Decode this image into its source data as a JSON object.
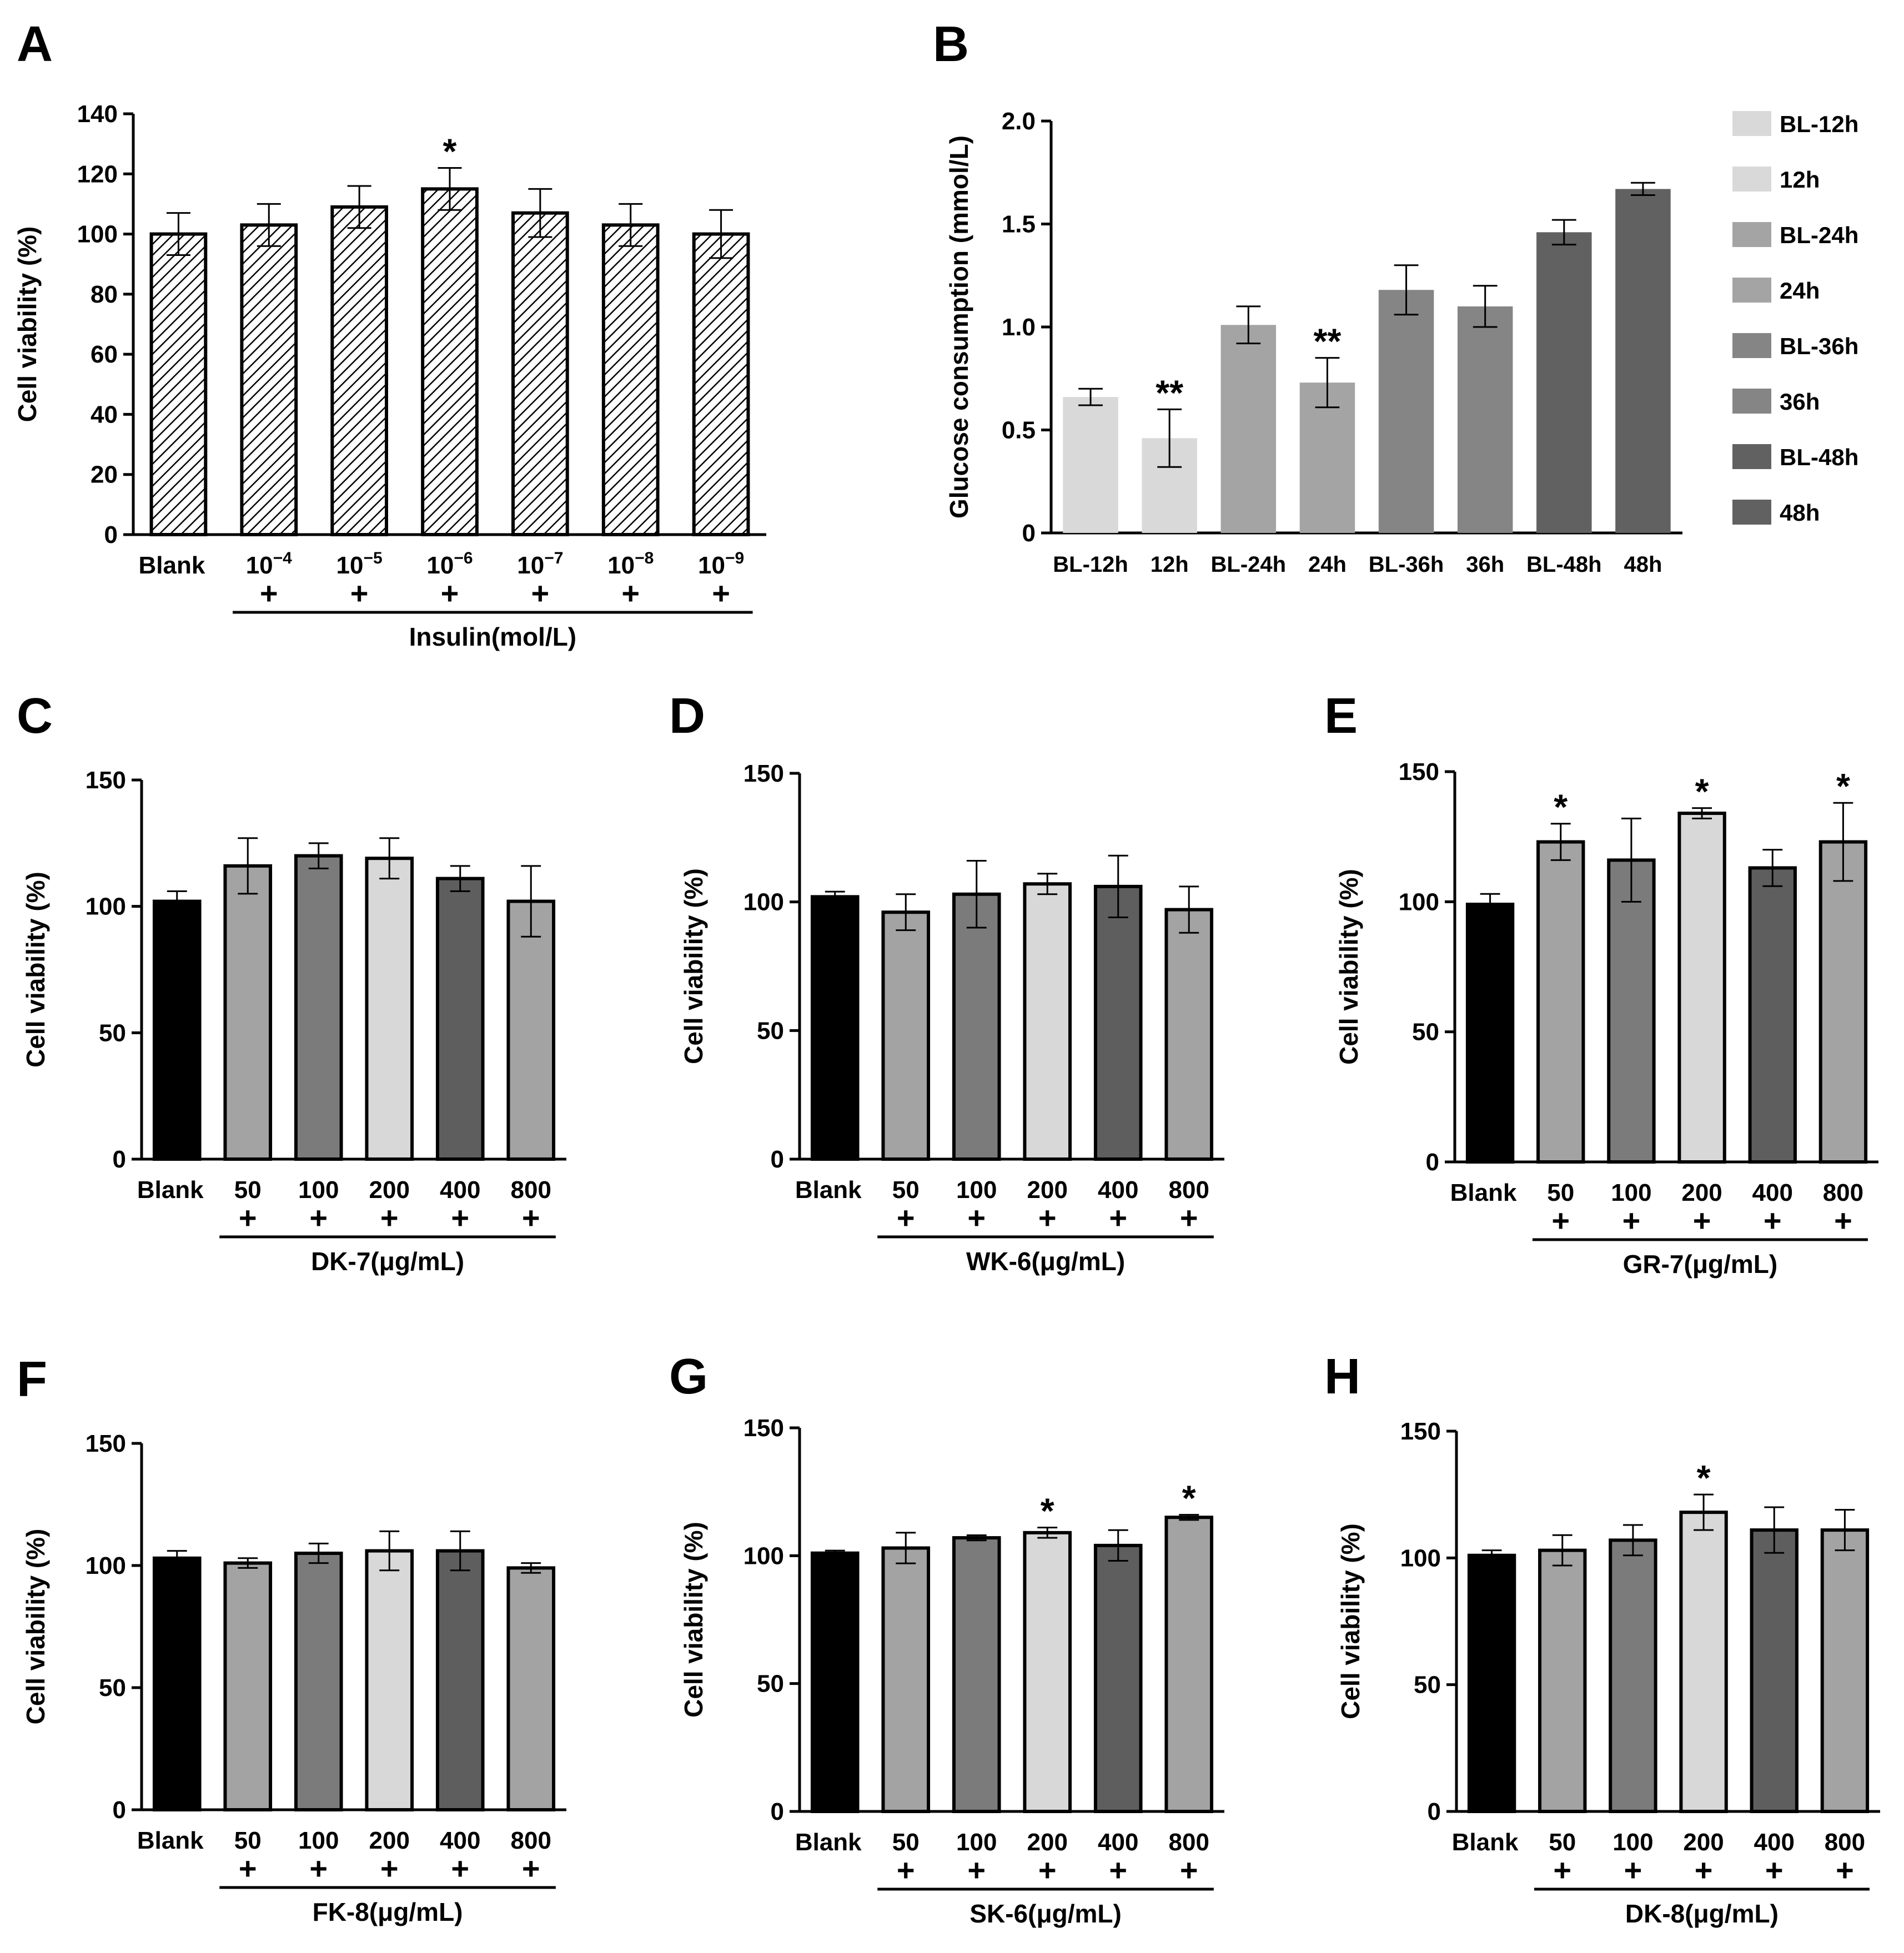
{
  "figure": {
    "colors": {
      "black": "#000000",
      "light": "#d8d8d8",
      "mid": "#a3a3a3",
      "dark": "#7b7b7b",
      "darker": "#5e5e5e"
    }
  },
  "chart_data": [
    {
      "panel": "A",
      "type": "bar",
      "hatched": true,
      "ylabel": "Cell viability (%)",
      "ylim": [
        0,
        140
      ],
      "yticks": [
        0,
        20,
        40,
        60,
        80,
        100,
        120,
        140
      ],
      "categories": [
        "Blank",
        "10",
        "10",
        "10",
        "10",
        "10",
        "10"
      ],
      "exponents": [
        "",
        "−4",
        "−5",
        "−6",
        "−7",
        "−8",
        "−9"
      ],
      "values": [
        100,
        103,
        109,
        115,
        107,
        103,
        100
      ],
      "errors": [
        7,
        7,
        7,
        7,
        8,
        7,
        8
      ],
      "signif": [
        "",
        "",
        "",
        "*",
        "",
        "",
        ""
      ],
      "plus": [
        false,
        true,
        true,
        true,
        true,
        true,
        true
      ],
      "treatment": "Insulin(mol/L)"
    },
    {
      "panel": "B",
      "type": "bar",
      "ylabel": "Glucose consumption (mmol/L)",
      "ylim": [
        0,
        2.0
      ],
      "yticks": [
        0,
        0.5,
        1.0,
        1.5,
        2.0
      ],
      "ytick_labels": [
        "0",
        "0.5",
        "1.0",
        "1.5",
        "2.0"
      ],
      "categories": [
        "BL-12h",
        "12h",
        "BL-24h",
        "24h",
        "BL-36h",
        "36h",
        "BL-48h",
        "48h"
      ],
      "values": [
        0.66,
        0.46,
        1.01,
        0.73,
        1.18,
        1.1,
        1.46,
        1.67
      ],
      "errors": [
        0.04,
        0.14,
        0.09,
        0.12,
        0.12,
        0.1,
        0.06,
        0.03
      ],
      "signif": [
        "",
        "**",
        "",
        "**",
        "",
        "",
        "",
        ""
      ],
      "colors": [
        "#d9d9d9",
        "#d9d9d9",
        "#a4a4a4",
        "#a4a4a4",
        "#858585",
        "#858585",
        "#616161",
        "#616161"
      ],
      "legend": [
        "BL-12h",
        "12h",
        "BL-24h",
        "24h",
        "BL-36h",
        "36h",
        "BL-48h",
        "48h"
      ]
    },
    {
      "panel": "C",
      "type": "bar",
      "ylabel": "Cell viability (%)",
      "ylim": [
        0,
        150
      ],
      "yticks": [
        0,
        50,
        100,
        150
      ],
      "categories": [
        "Blank",
        "50",
        "100",
        "200",
        "400",
        "800"
      ],
      "values": [
        102,
        116,
        120,
        119,
        111,
        102
      ],
      "errors": [
        4,
        11,
        5,
        8,
        5,
        14
      ],
      "signif": [
        "",
        "",
        "",
        "",
        "",
        ""
      ],
      "plus": [
        false,
        true,
        true,
        true,
        true,
        true
      ],
      "treatment": "DK-7(μg/mL)"
    },
    {
      "panel": "D",
      "type": "bar",
      "ylabel": "Cell viability (%)",
      "ylim": [
        0,
        150
      ],
      "yticks": [
        0,
        50,
        100,
        150
      ],
      "categories": [
        "Blank",
        "50",
        "100",
        "200",
        "400",
        "800"
      ],
      "values": [
        102,
        96,
        103,
        107,
        106,
        97
      ],
      "errors": [
        2,
        7,
        13,
        4,
        12,
        9
      ],
      "signif": [
        "",
        "",
        "",
        "",
        "",
        ""
      ],
      "plus": [
        false,
        true,
        true,
        true,
        true,
        true
      ],
      "treatment": "WK-6(μg/mL)"
    },
    {
      "panel": "E",
      "type": "bar",
      "ylabel": "Cell viability (%)",
      "ylim": [
        0,
        150
      ],
      "yticks": [
        0,
        50,
        100,
        150
      ],
      "categories": [
        "Blank",
        "50",
        "100",
        "200",
        "400",
        "800"
      ],
      "values": [
        99,
        123,
        116,
        134,
        113,
        123
      ],
      "errors": [
        4,
        7,
        16,
        2,
        7,
        15
      ],
      "signif": [
        "",
        "*",
        "",
        "*",
        "",
        "*"
      ],
      "plus": [
        false,
        true,
        true,
        true,
        true,
        true
      ],
      "treatment": "GR-7(μg/mL)"
    },
    {
      "panel": "F",
      "type": "bar",
      "ylabel": "Cell viability (%)",
      "ylim": [
        0,
        150
      ],
      "yticks": [
        0,
        50,
        100,
        150
      ],
      "categories": [
        "Blank",
        "50",
        "100",
        "200",
        "400",
        "800"
      ],
      "values": [
        103,
        101,
        105,
        106,
        106,
        99
      ],
      "errors": [
        3,
        2,
        4,
        8,
        8,
        2
      ],
      "signif": [
        "",
        "",
        "",
        "",
        "",
        ""
      ],
      "plus": [
        false,
        true,
        true,
        true,
        true,
        true
      ],
      "treatment": "FK-8(μg/mL)"
    },
    {
      "panel": "G",
      "type": "bar",
      "ylabel": "Cell viability (%)",
      "ylim": [
        0,
        150
      ],
      "yticks": [
        0,
        50,
        100,
        150
      ],
      "categories": [
        "Blank",
        "50",
        "100",
        "200",
        "400",
        "800"
      ],
      "values": [
        101,
        103,
        107,
        109,
        104,
        115
      ],
      "errors": [
        1,
        6,
        1,
        2,
        6,
        1
      ],
      "signif": [
        "",
        "",
        "",
        "*",
        "",
        "*"
      ],
      "plus": [
        false,
        true,
        true,
        true,
        true,
        true
      ],
      "treatment": "SK-6(μg/mL)"
    },
    {
      "panel": "H",
      "type": "bar",
      "ylabel": "Cell viability (%)",
      "ylim": [
        0,
        150
      ],
      "yticks": [
        0,
        50,
        100,
        150
      ],
      "categories": [
        "Blank",
        "50",
        "100",
        "200",
        "400",
        "800"
      ],
      "values": [
        101,
        103,
        107,
        118,
        111,
        111
      ],
      "errors": [
        2,
        6,
        6,
        7,
        9,
        8
      ],
      "signif": [
        "",
        "",
        "",
        "*",
        "",
        ""
      ],
      "plus": [
        false,
        true,
        true,
        true,
        true,
        true
      ],
      "treatment": "DK-8(μg/mL)"
    }
  ]
}
